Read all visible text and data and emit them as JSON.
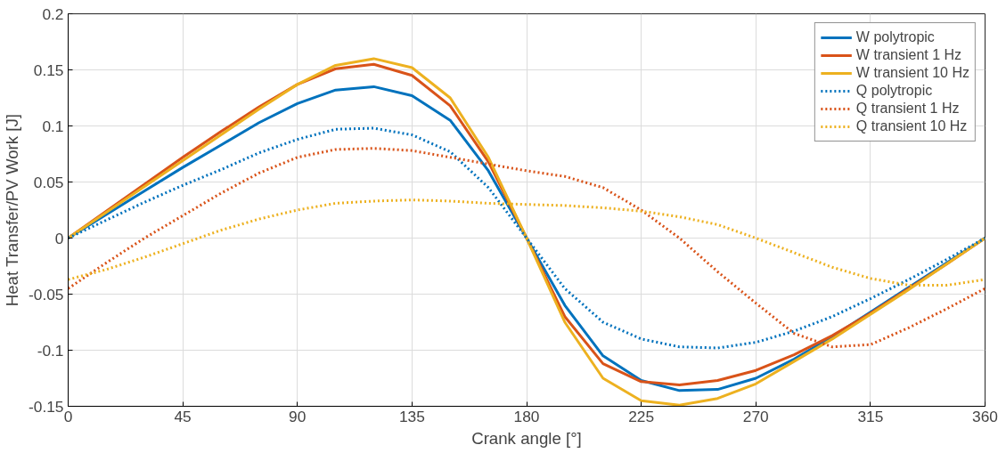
{
  "chart_data": {
    "type": "line",
    "xlabel": "Crank angle [°]",
    "ylabel": "Heat Transfer/PV Work [J]",
    "x": [
      0,
      15,
      30,
      45,
      60,
      75,
      90,
      105,
      120,
      135,
      150,
      165,
      180,
      195,
      210,
      225,
      240,
      255,
      270,
      285,
      300,
      315,
      330,
      345,
      360
    ],
    "series": [
      {
        "name": "W polytropic",
        "color": "#0072bd",
        "line_style": "solid",
        "values": [
          0,
          0.021,
          0.042,
          0.063,
          0.083,
          0.103,
          0.12,
          0.132,
          0.135,
          0.127,
          0.105,
          0.06,
          0,
          -0.06,
          -0.105,
          -0.127,
          -0.136,
          -0.135,
          -0.125,
          -0.108,
          -0.088,
          -0.066,
          -0.044,
          -0.022,
          0
        ]
      },
      {
        "name": "W transient 1 Hz",
        "color": "#d95319",
        "line_style": "solid",
        "values": [
          0,
          0.024,
          0.048,
          0.072,
          0.095,
          0.117,
          0.137,
          0.151,
          0.155,
          0.145,
          0.118,
          0.068,
          0,
          -0.07,
          -0.112,
          -0.128,
          -0.131,
          -0.127,
          -0.118,
          -0.104,
          -0.087,
          -0.067,
          -0.045,
          -0.023,
          0
        ]
      },
      {
        "name": "W transient 10 Hz",
        "color": "#edb120",
        "line_style": "solid",
        "values": [
          0,
          0.023,
          0.046,
          0.069,
          0.092,
          0.115,
          0.137,
          0.154,
          0.16,
          0.152,
          0.125,
          0.072,
          0,
          -0.075,
          -0.125,
          -0.145,
          -0.149,
          -0.143,
          -0.13,
          -0.11,
          -0.09,
          -0.068,
          -0.046,
          -0.023,
          0
        ]
      },
      {
        "name": "Q polytropic",
        "color": "#0072bd",
        "line_style": "dotted",
        "values": [
          0,
          0.016,
          0.032,
          0.047,
          0.061,
          0.076,
          0.088,
          0.097,
          0.098,
          0.092,
          0.077,
          0.045,
          0,
          -0.045,
          -0.075,
          -0.09,
          -0.097,
          -0.098,
          -0.093,
          -0.083,
          -0.07,
          -0.054,
          -0.037,
          -0.019,
          0
        ]
      },
      {
        "name": "Q transient 1 Hz",
        "color": "#d95319",
        "line_style": "dotted",
        "values": [
          -0.045,
          -0.022,
          0,
          0.02,
          0.04,
          0.058,
          0.072,
          0.079,
          0.08,
          0.078,
          0.072,
          0.066,
          0.06,
          0.055,
          0.045,
          0.025,
          0,
          -0.03,
          -0.058,
          -0.085,
          -0.097,
          -0.095,
          -0.08,
          -0.063,
          -0.045
        ]
      },
      {
        "name": "Q transient 10 Hz",
        "color": "#edb120",
        "line_style": "dotted",
        "values": [
          -0.037,
          -0.028,
          -0.017,
          -0.005,
          0.007,
          0.017,
          0.025,
          0.031,
          0.033,
          0.034,
          0.033,
          0.031,
          0.03,
          0.029,
          0.027,
          0.024,
          0.019,
          0.012,
          0,
          -0.013,
          -0.026,
          -0.036,
          -0.042,
          -0.042,
          -0.037
        ]
      }
    ],
    "xlim": [
      0,
      360
    ],
    "xticks": [
      0,
      45,
      90,
      135,
      180,
      225,
      270,
      315,
      360
    ],
    "ylim": [
      -0.15,
      0.2
    ],
    "yticks": [
      -0.15,
      -0.1,
      -0.05,
      0,
      0.05,
      0.1,
      0.15,
      0.2
    ],
    "grid": true,
    "legend": "top right"
  }
}
